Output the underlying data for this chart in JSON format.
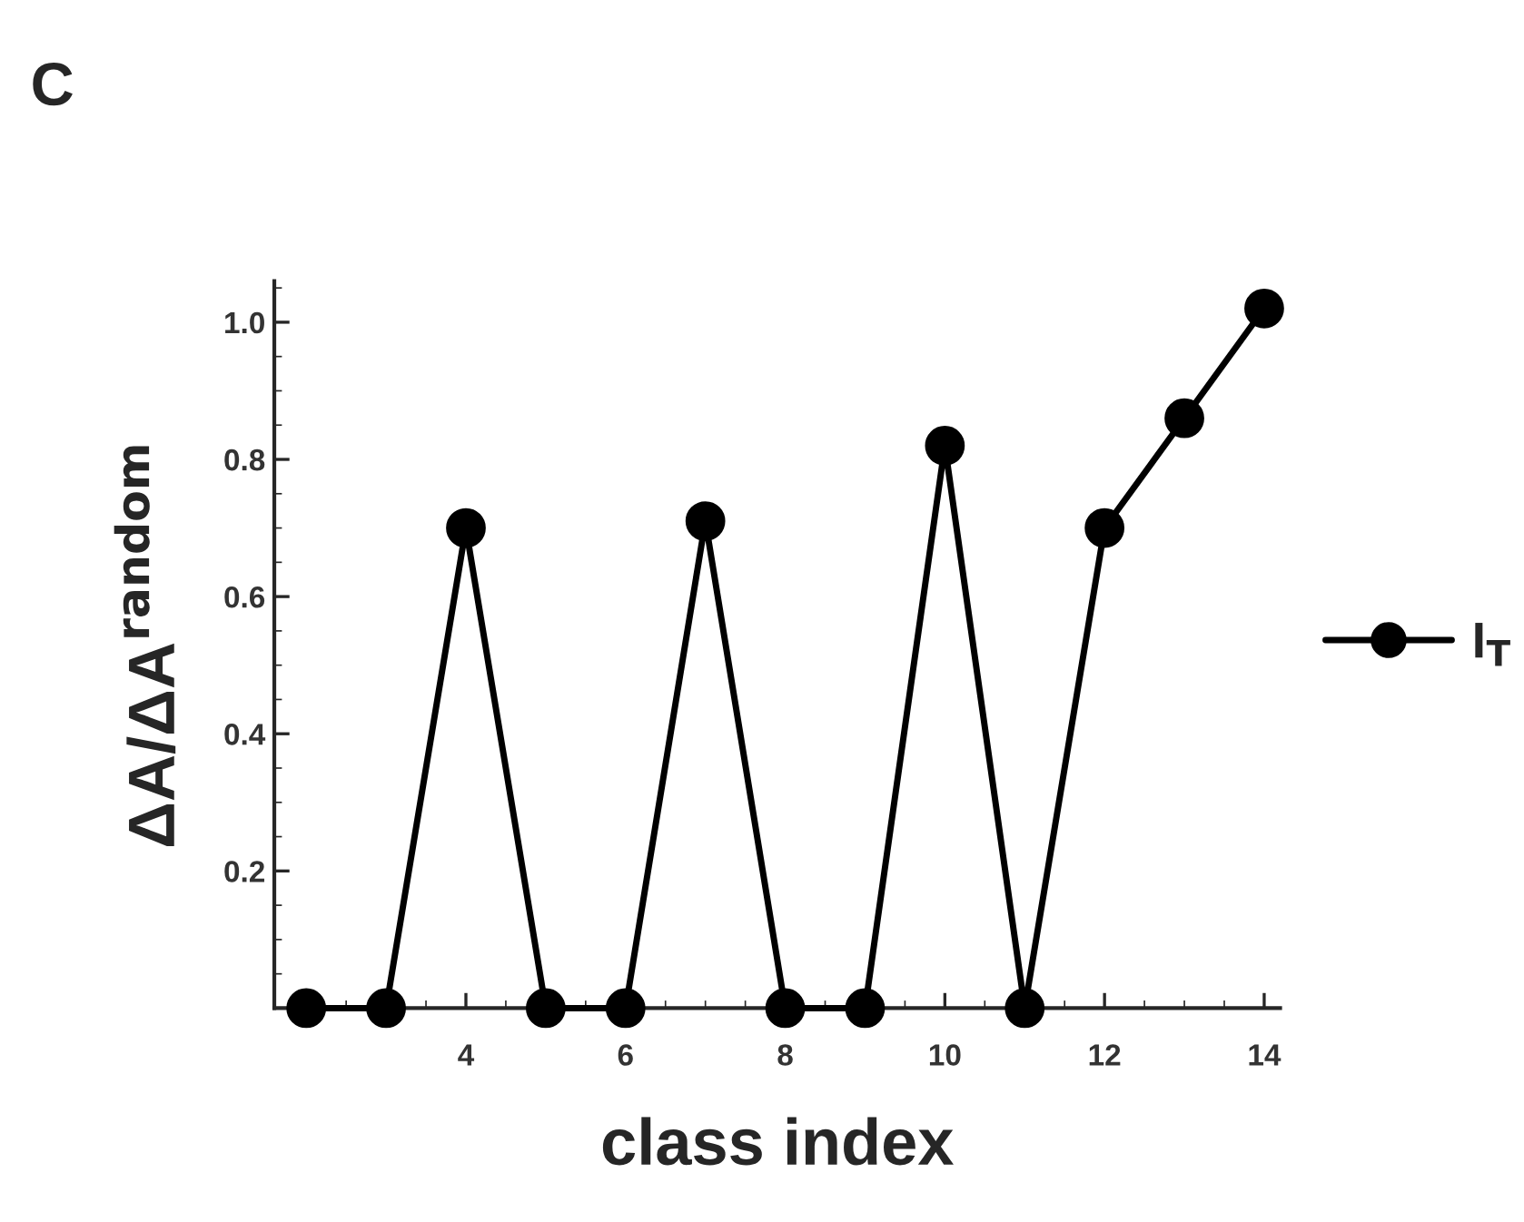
{
  "chart_data": {
    "type": "line",
    "title": "C",
    "xlabel": "class index",
    "ylabel": "ΔA/ΔA$^{random}$",
    "x": [
      2,
      3,
      4,
      5,
      6,
      7,
      8,
      9,
      10,
      11,
      12,
      13,
      14
    ],
    "series": [
      {
        "name": "I$_{T}$",
        "color": "#000000",
        "values": [
          0,
          0,
          0.7,
          0,
          0,
          0.71,
          0,
          0,
          0.82,
          0,
          0.7,
          0.86,
          1.02
        ]
      }
    ],
    "xlim": [
      1.6,
      14.2
    ],
    "xticks": [
      4,
      6,
      8,
      10,
      12,
      14
    ],
    "ylim": [
      0,
      1.06
    ],
    "yticks": [
      0.2,
      0.4,
      0.6,
      0.8,
      {
        "value": 1.0,
        "label": "1.0"
      }
    ],
    "marker": "circle",
    "line_style": "solid",
    "grid": false,
    "legend": "right"
  }
}
